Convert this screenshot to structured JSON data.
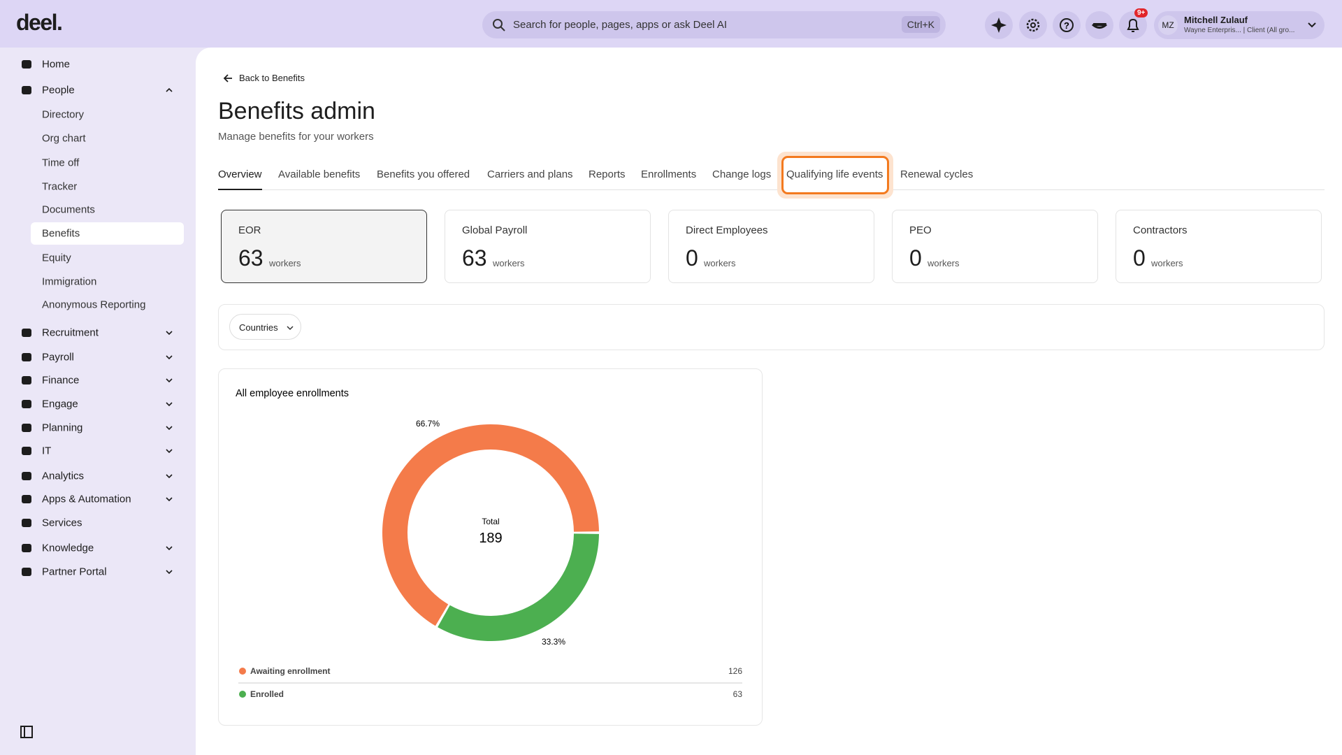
{
  "topbar": {
    "logo": "deel.",
    "search_placeholder": "Search for people, pages, apps or ask Deel AI",
    "search_shortcut": "Ctrl+K",
    "notification_badge": "9+",
    "user": {
      "initials": "MZ",
      "name": "Mitchell Zulauf",
      "subtitle": "Wayne Enterpris... | Client (All gro..."
    }
  },
  "sidebar": {
    "items": [
      {
        "label": "Home"
      },
      {
        "label": "People",
        "children": [
          "Directory",
          "Org chart",
          "Time off",
          "Tracker",
          "Documents",
          "Benefits",
          "Equity",
          "Immigration",
          "Anonymous Reporting"
        ]
      },
      {
        "label": "Recruitment"
      },
      {
        "label": "Payroll"
      },
      {
        "label": "Finance"
      },
      {
        "label": "Engage"
      },
      {
        "label": "Planning"
      },
      {
        "label": "IT"
      },
      {
        "label": "Analytics"
      },
      {
        "label": "Apps & Automation"
      },
      {
        "label": "Services"
      },
      {
        "label": "Knowledge"
      },
      {
        "label": "Partner Portal"
      }
    ]
  },
  "page": {
    "back_link": "Back to Benefits",
    "title": "Benefits admin",
    "subtitle": "Manage benefits for your workers",
    "tabs": [
      "Overview",
      "Available benefits",
      "Benefits you offered",
      "Carriers and plans",
      "Reports",
      "Enrollments",
      "Change logs",
      "Qualifying life events",
      "Renewal cycles"
    ],
    "cards": [
      {
        "label": "EOR",
        "count": 63,
        "unit": "workers"
      },
      {
        "label": "Global Payroll",
        "count": 63,
        "unit": "workers"
      },
      {
        "label": "Direct Employees",
        "count": 0,
        "unit": "workers"
      },
      {
        "label": "PEO",
        "count": 0,
        "unit": "workers"
      },
      {
        "label": "Contractors",
        "count": 0,
        "unit": "workers"
      }
    ],
    "filter": "Countries"
  },
  "enrollment_chart": {
    "type": "donut",
    "title": "All employee enrollments",
    "center_label": "Total",
    "total": 189,
    "categories": [
      "Awaiting enrollment",
      "Enrolled"
    ],
    "values": [
      126,
      63
    ],
    "percent_labels": [
      "66.7%",
      "33.3%"
    ],
    "colors": [
      "#f47b4a",
      "#4caf50"
    ]
  }
}
